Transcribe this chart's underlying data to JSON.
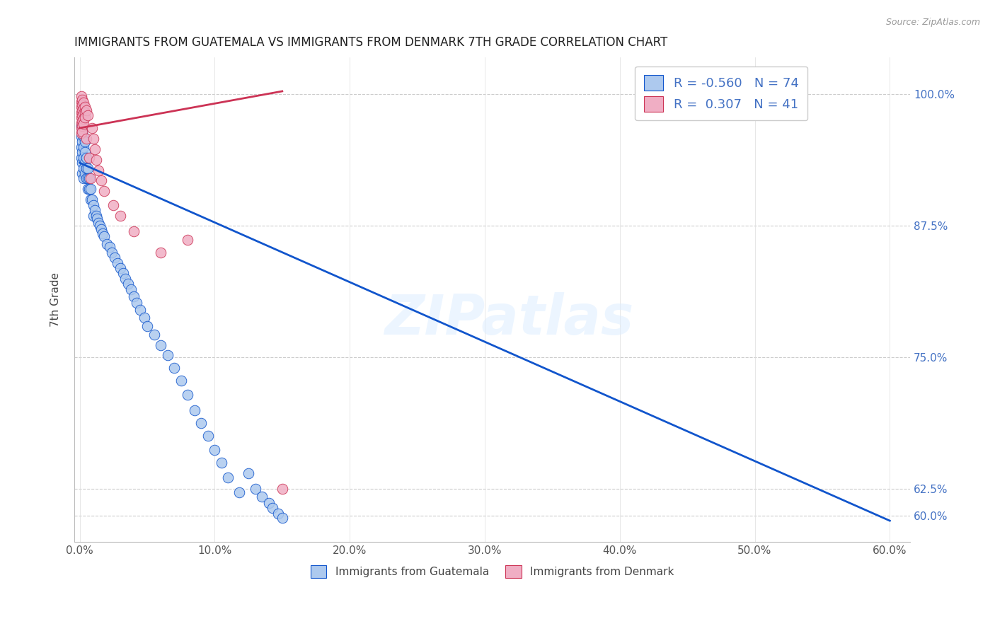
{
  "title": "IMMIGRANTS FROM GUATEMALA VS IMMIGRANTS FROM DENMARK 7TH GRADE CORRELATION CHART",
  "source": "Source: ZipAtlas.com",
  "ylabel": "7th Grade",
  "r_guatemala": -0.56,
  "n_guatemala": 74,
  "r_denmark": 0.307,
  "n_denmark": 41,
  "xlim_pct": [
    0.0,
    0.15
  ],
  "ylim_pct": [
    0.58,
    1.02
  ],
  "xtick_vals": [
    0.0,
    0.02,
    0.04,
    0.06,
    0.08,
    0.1,
    0.12,
    0.14
  ],
  "xtick_labels": [
    "0.0%",
    "",
    "",
    "",
    "",
    "",
    "",
    ""
  ],
  "ytick_values": [
    0.6,
    0.625,
    0.75,
    0.875,
    1.0
  ],
  "ytick_labels_right": [
    "60.0%",
    "62.5%",
    "75.0%",
    "87.5%",
    "100.0%"
  ],
  "color_guatemala": "#adc9ee",
  "color_denmark": "#f0aec4",
  "line_color_guatemala": "#1155cc",
  "line_color_denmark": "#cc3355",
  "watermark": "ZIPatlas",
  "legend_label_guatemala": "Immigrants from Guatemala",
  "legend_label_denmark": "Immigrants from Denmark",
  "guat_line_x0": 0.0,
  "guat_line_y0": 0.935,
  "guat_line_x1": 0.15,
  "guat_line_y1": 0.595,
  "den_line_x0": 0.0,
  "den_line_y0": 0.967,
  "den_line_x1": 0.15,
  "den_line_y1": 1.003,
  "guatemala_pts": [
    [
      0.001,
      0.97
    ],
    [
      0.001,
      0.96
    ],
    [
      0.001,
      0.95
    ],
    [
      0.001,
      0.94
    ],
    [
      0.002,
      0.965
    ],
    [
      0.002,
      0.955
    ],
    [
      0.002,
      0.945
    ],
    [
      0.002,
      0.935
    ],
    [
      0.002,
      0.925
    ],
    [
      0.003,
      0.96
    ],
    [
      0.003,
      0.95
    ],
    [
      0.003,
      0.94
    ],
    [
      0.003,
      0.93
    ],
    [
      0.003,
      0.92
    ],
    [
      0.004,
      0.955
    ],
    [
      0.004,
      0.945
    ],
    [
      0.004,
      0.935
    ],
    [
      0.004,
      0.925
    ],
    [
      0.005,
      0.94
    ],
    [
      0.005,
      0.93
    ],
    [
      0.005,
      0.92
    ],
    [
      0.006,
      0.93
    ],
    [
      0.006,
      0.92
    ],
    [
      0.006,
      0.91
    ],
    [
      0.007,
      0.92
    ],
    [
      0.007,
      0.91
    ],
    [
      0.008,
      0.91
    ],
    [
      0.008,
      0.9
    ],
    [
      0.009,
      0.9
    ],
    [
      0.01,
      0.895
    ],
    [
      0.01,
      0.885
    ],
    [
      0.011,
      0.89
    ],
    [
      0.012,
      0.885
    ],
    [
      0.013,
      0.882
    ],
    [
      0.014,
      0.878
    ],
    [
      0.015,
      0.875
    ],
    [
      0.016,
      0.872
    ],
    [
      0.017,
      0.868
    ],
    [
      0.018,
      0.865
    ],
    [
      0.02,
      0.858
    ],
    [
      0.022,
      0.855
    ],
    [
      0.024,
      0.85
    ],
    [
      0.026,
      0.845
    ],
    [
      0.028,
      0.84
    ],
    [
      0.03,
      0.835
    ],
    [
      0.032,
      0.83
    ],
    [
      0.034,
      0.825
    ],
    [
      0.036,
      0.82
    ],
    [
      0.038,
      0.815
    ],
    [
      0.04,
      0.808
    ],
    [
      0.042,
      0.802
    ],
    [
      0.045,
      0.795
    ],
    [
      0.048,
      0.788
    ],
    [
      0.05,
      0.78
    ],
    [
      0.055,
      0.772
    ],
    [
      0.06,
      0.762
    ],
    [
      0.065,
      0.752
    ],
    [
      0.07,
      0.74
    ],
    [
      0.075,
      0.728
    ],
    [
      0.08,
      0.715
    ],
    [
      0.085,
      0.7
    ],
    [
      0.09,
      0.688
    ],
    [
      0.095,
      0.676
    ],
    [
      0.1,
      0.662
    ],
    [
      0.105,
      0.65
    ],
    [
      0.11,
      0.636
    ],
    [
      0.118,
      0.622
    ],
    [
      0.125,
      0.64
    ],
    [
      0.13,
      0.625
    ],
    [
      0.135,
      0.618
    ],
    [
      0.14,
      0.612
    ],
    [
      0.143,
      0.607
    ],
    [
      0.147,
      0.602
    ],
    [
      0.15,
      0.598
    ]
  ],
  "denmark_pts": [
    [
      0.001,
      0.998
    ],
    [
      0.001,
      0.993
    ],
    [
      0.001,
      0.988
    ],
    [
      0.001,
      0.983
    ],
    [
      0.001,
      0.978
    ],
    [
      0.001,
      0.973
    ],
    [
      0.001,
      0.968
    ],
    [
      0.001,
      0.963
    ],
    [
      0.002,
      0.995
    ],
    [
      0.002,
      0.99
    ],
    [
      0.002,
      0.985
    ],
    [
      0.002,
      0.98
    ],
    [
      0.002,
      0.975
    ],
    [
      0.002,
      0.97
    ],
    [
      0.002,
      0.965
    ],
    [
      0.003,
      0.992
    ],
    [
      0.003,
      0.987
    ],
    [
      0.003,
      0.982
    ],
    [
      0.003,
      0.977
    ],
    [
      0.003,
      0.972
    ],
    [
      0.004,
      0.988
    ],
    [
      0.004,
      0.983
    ],
    [
      0.004,
      0.978
    ],
    [
      0.005,
      0.985
    ],
    [
      0.005,
      0.958
    ],
    [
      0.006,
      0.98
    ],
    [
      0.007,
      0.94
    ],
    [
      0.008,
      0.92
    ],
    [
      0.009,
      0.968
    ],
    [
      0.01,
      0.958
    ],
    [
      0.011,
      0.948
    ],
    [
      0.012,
      0.938
    ],
    [
      0.014,
      0.928
    ],
    [
      0.016,
      0.918
    ],
    [
      0.018,
      0.908
    ],
    [
      0.025,
      0.895
    ],
    [
      0.03,
      0.885
    ],
    [
      0.04,
      0.87
    ],
    [
      0.06,
      0.85
    ],
    [
      0.08,
      0.862
    ],
    [
      0.15,
      0.625
    ]
  ]
}
